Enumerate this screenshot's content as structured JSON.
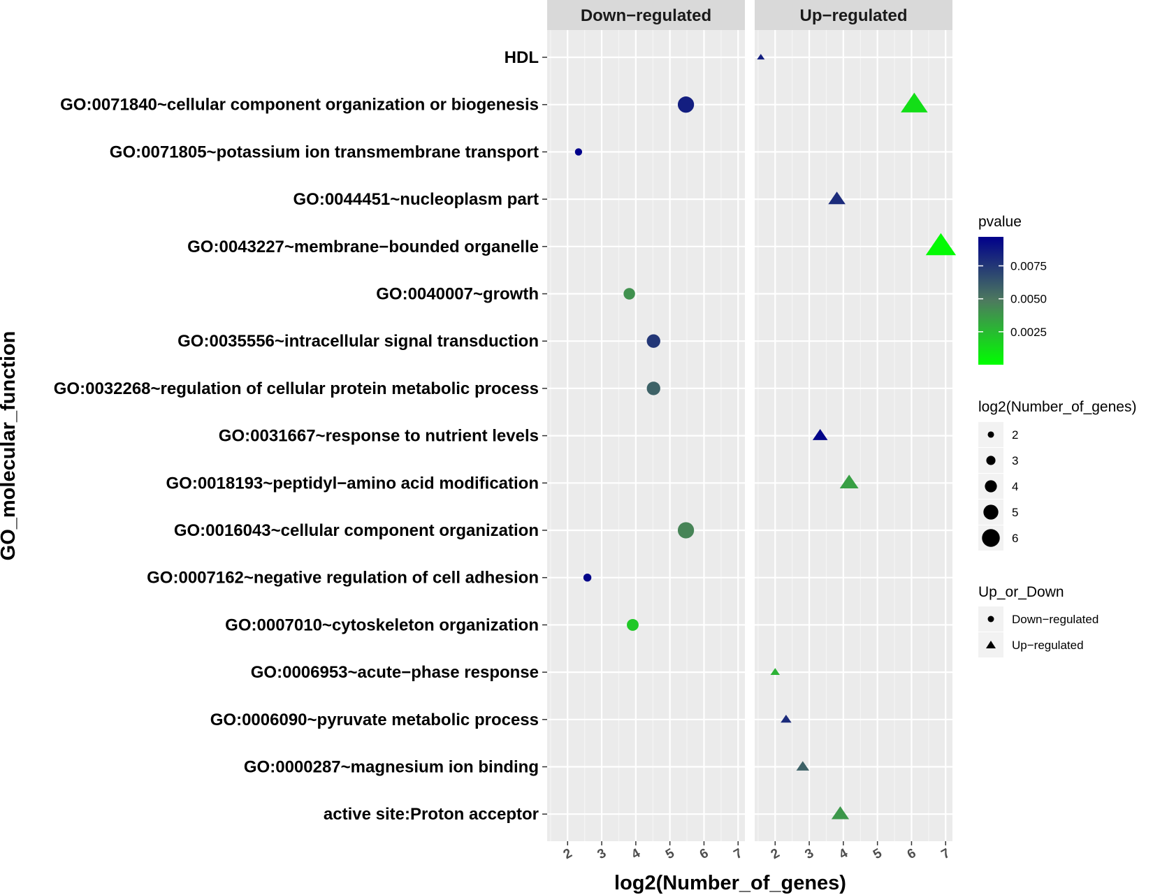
{
  "chart_data": {
    "type": "scatter",
    "xlabel": "log2(Number_of_genes)",
    "ylabel": "GO_molecular_function",
    "xlim": [
      1.4,
      7.2
    ],
    "x_ticks": [
      "2",
      "3",
      "4",
      "5",
      "6",
      "7"
    ],
    "facets": [
      "Down−regulated",
      "Up−regulated"
    ],
    "categories": [
      "HDL",
      "GO:0071840~cellular component organization or biogenesis",
      "GO:0071805~potassium ion transmembrane transport",
      "GO:0044451~nucleoplasm part",
      "GO:0043227~membrane−bounded organelle",
      "GO:0040007~growth",
      "GO:0035556~intracellular signal transduction",
      "GO:0032268~regulation of cellular protein metabolic process",
      "GO:0031667~response to nutrient levels",
      "GO:0018193~peptidyl−amino acid modification",
      "GO:0016043~cellular component organization",
      "GO:0007162~negative regulation of cell adhesion",
      "GO:0007010~cytoskeleton organization",
      "GO:0006953~acute−phase response",
      "GO:0006090~pyruvate metabolic process",
      "GO:0000287~magnesium ion binding",
      "active site:Proton acceptor"
    ],
    "series": [
      {
        "name": "Down−regulated",
        "points": [
          {
            "category": "GO:0071840~cellular component organization or biogenesis",
            "x": 5.47,
            "pvalue": 0.0085
          },
          {
            "category": "GO:0071805~potassium ion transmembrane transport",
            "x": 2.32,
            "pvalue": 0.0097
          },
          {
            "category": "GO:0040007~growth",
            "x": 3.81,
            "pvalue": 0.004
          },
          {
            "category": "GO:0035556~intracellular signal transduction",
            "x": 4.52,
            "pvalue": 0.0075
          },
          {
            "category": "GO:0032268~regulation of cellular protein metabolic process",
            "x": 4.52,
            "pvalue": 0.0058
          },
          {
            "category": "GO:0016043~cellular component organization",
            "x": 5.47,
            "pvalue": 0.0045
          },
          {
            "category": "GO:0007162~negative regulation of cell adhesion",
            "x": 2.58,
            "pvalue": 0.0095
          },
          {
            "category": "GO:0007010~cytoskeleton organization",
            "x": 3.91,
            "pvalue": 0.002
          }
        ]
      },
      {
        "name": "Up−regulated",
        "points": [
          {
            "category": "HDL",
            "x": 1.58,
            "pvalue": 0.0085
          },
          {
            "category": "GO:0071840~cellular component organization or biogenesis",
            "x": 6.08,
            "pvalue": 0.0012
          },
          {
            "category": "GO:0044451~nucleoplasm part",
            "x": 3.81,
            "pvalue": 0.008
          },
          {
            "category": "GO:0043227~membrane−bounded organelle",
            "x": 6.86,
            "pvalue": 0.0002
          },
          {
            "category": "GO:0031667~response to nutrient levels",
            "x": 3.32,
            "pvalue": 0.0095
          },
          {
            "category": "GO:0018193~peptidyl−amino acid modification",
            "x": 4.17,
            "pvalue": 0.0035
          },
          {
            "category": "GO:0006953~acute−phase response",
            "x": 2.0,
            "pvalue": 0.0028
          },
          {
            "category": "GO:0006090~pyruvate metabolic process",
            "x": 2.32,
            "pvalue": 0.008
          },
          {
            "category": "GO:0000287~magnesium ion binding",
            "x": 2.81,
            "pvalue": 0.0058
          },
          {
            "category": "active site:Proton acceptor",
            "x": 3.91,
            "pvalue": 0.0038
          }
        ]
      }
    ],
    "color_scale": {
      "title": "pvalue",
      "range": [
        0,
        0.0097
      ],
      "ticks": [
        "0.0075",
        "0.0050",
        "0.0025"
      ],
      "tick_values": [
        0.0075,
        0.005,
        0.0025
      ],
      "low_color": "#00ff00",
      "mid_color": "#4d7a5e",
      "high_color": "#00008b"
    },
    "size_legend": {
      "title": "log2(Number_of_genes)",
      "values": [
        "2",
        "3",
        "4",
        "5",
        "6"
      ]
    },
    "shape_legend": {
      "title": "Up_or_Down",
      "entries": [
        "Down−regulated",
        "Up−regulated"
      ]
    }
  }
}
